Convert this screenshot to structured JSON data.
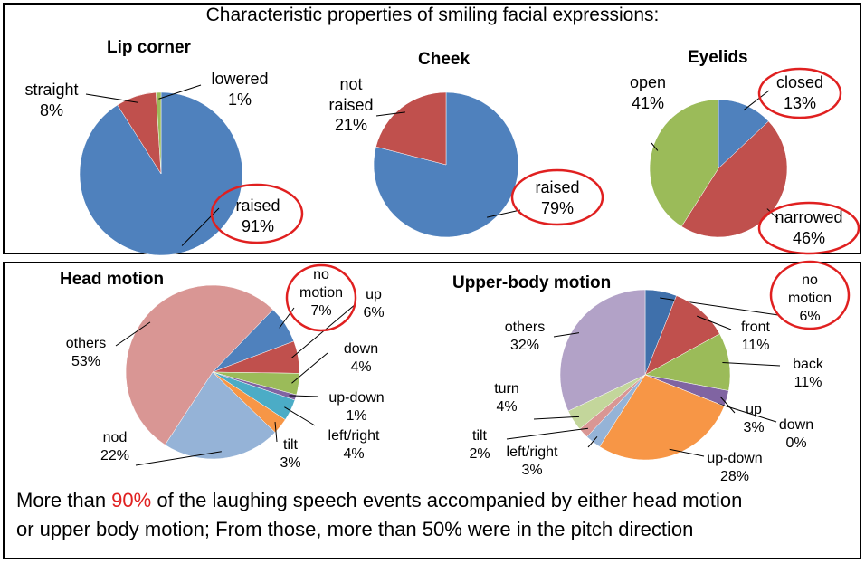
{
  "heading": "Characteristic properties of smiling facial expressions:",
  "caption": {
    "before": "More than ",
    "highlight": "90%",
    "after": " of the laughing speech events accompanied by either head motion",
    "line2": "or upper body motion; From those, more than 50% were in the pitch direction"
  },
  "chart_data": [
    {
      "type": "pie",
      "title": "Lip corner",
      "categories": [
        "raised",
        "straight",
        "lowered"
      ],
      "values": [
        91,
        8,
        1
      ],
      "value_labels": [
        "91%",
        "8%",
        "1%"
      ],
      "colors": [
        "#4f81bd",
        "#c0504d",
        "#9bbb59"
      ]
    },
    {
      "type": "pie",
      "title": "Cheek",
      "categories": [
        "raised",
        "not raised"
      ],
      "values": [
        79,
        21
      ],
      "value_labels": [
        "79%",
        "21%"
      ],
      "colors": [
        "#4f81bd",
        "#c0504d"
      ]
    },
    {
      "type": "pie",
      "title": "Eyelids",
      "categories": [
        "closed",
        "narrowed",
        "open"
      ],
      "values": [
        13,
        46,
        41
      ],
      "value_labels": [
        "13%",
        "46%",
        "41%"
      ],
      "colors": [
        "#4f81bd",
        "#c0504d",
        "#9bbb59"
      ]
    },
    {
      "type": "pie",
      "title": "Head motion",
      "categories": [
        "no motion",
        "up",
        "down",
        "up-down",
        "left/right",
        "tilt",
        "nod",
        "others"
      ],
      "values": [
        7,
        6,
        4,
        1,
        4,
        3,
        22,
        53
      ],
      "value_labels": [
        "7%",
        "6%",
        "4%",
        "1%",
        "4%",
        "3%",
        "22%",
        "53%"
      ],
      "colors": [
        "#4f81bd",
        "#c0504d",
        "#9bbb59",
        "#8064a2",
        "#4bacc6",
        "#f79646",
        "#95b3d7",
        "#d99694"
      ]
    },
    {
      "type": "pie",
      "title": "Upper-body motion",
      "categories": [
        "no motion",
        "front",
        "back",
        "up",
        "down",
        "up-down",
        "left/right",
        "tilt",
        "turn",
        "others"
      ],
      "values": [
        6,
        11,
        11,
        3,
        0,
        28,
        3,
        2,
        4,
        32
      ],
      "value_labels": [
        "6%",
        "11%",
        "11%",
        "3%",
        "0%",
        "28%",
        "3%",
        "2%",
        "4%",
        "32%"
      ],
      "colors": [
        "#3f70ab",
        "#c0504d",
        "#9bbb59",
        "#8064a2",
        "#4bacc6",
        "#f79646",
        "#95b3d7",
        "#d99694",
        "#c3d69b",
        "#b2a2c7"
      ]
    }
  ]
}
